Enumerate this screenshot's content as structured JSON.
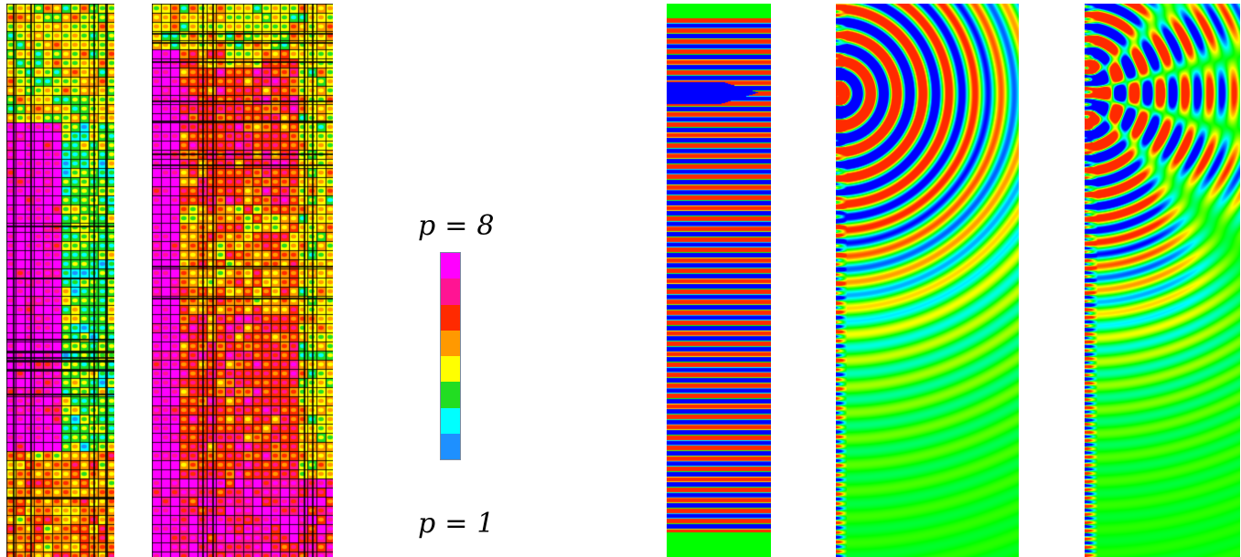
{
  "legend": {
    "top_symbol": "p",
    "top_value": "8",
    "bottom_symbol": "p",
    "bottom_value": "1",
    "equals": "=",
    "colors_top_to_bottom": [
      "#ff00ff",
      "#ff1493",
      "#ff2a00",
      "#ff9900",
      "#ffff00",
      "#22dd22",
      "#00ffff",
      "#1e90ff"
    ],
    "orders_top_to_bottom": [
      8,
      7,
      6,
      5,
      4,
      3,
      2,
      1
    ]
  },
  "wave_colors": {
    "background": "#00ff00",
    "positive_high": "#ff2a00",
    "positive_mid": "#ffff00",
    "negative_mid": "#00ffff",
    "negative_high": "#0000ff"
  }
}
